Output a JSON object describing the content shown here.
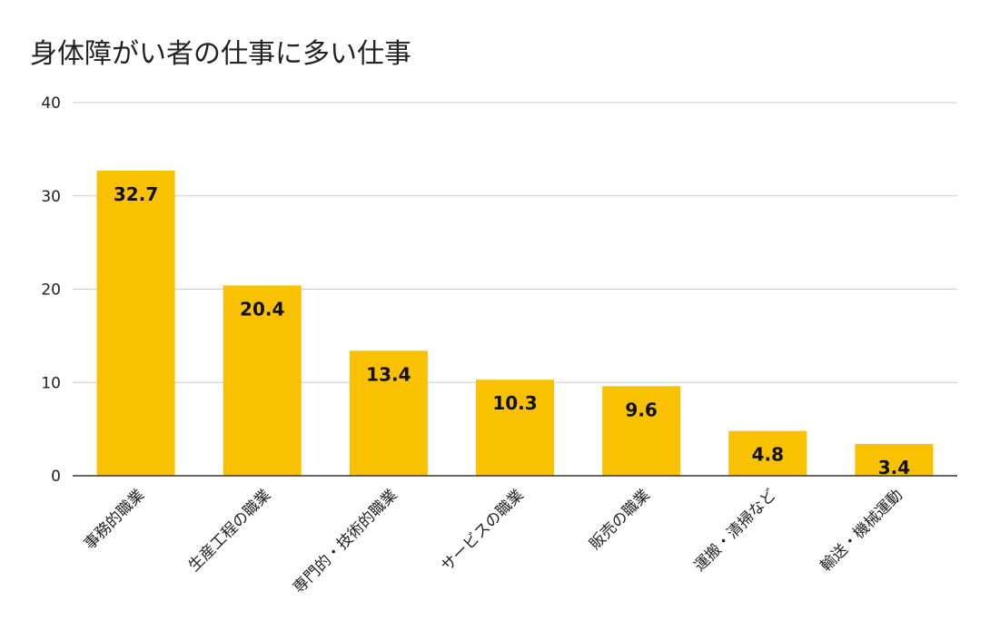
{
  "chart_data": {
    "type": "bar",
    "title": "身体障がい者の仕事に多い仕事",
    "categories": [
      "事務的職業",
      "生産工程の職業",
      "専門的・技術的職業",
      "サービスの職業",
      "販売の職業",
      "運搬・清掃など",
      "輸送・機械運動"
    ],
    "values": [
      32.7,
      20.4,
      13.4,
      10.3,
      9.6,
      4.8,
      3.4
    ],
    "value_labels": [
      "32.7",
      "20.4",
      "13.4",
      "10.3",
      "9.6",
      "4.8",
      "3.4"
    ],
    "ylim": [
      0,
      40
    ],
    "yticks": [
      0,
      10,
      20,
      30,
      40
    ],
    "ytick_labels": [
      "0",
      "10",
      "20",
      "30",
      "40"
    ],
    "xlabel": "",
    "ylabel": "",
    "grid": true,
    "legend": "none",
    "colors": {
      "bar": "#F9C100",
      "grid": "#CCCCCC",
      "axis": "#333333",
      "text": "#222222"
    }
  }
}
